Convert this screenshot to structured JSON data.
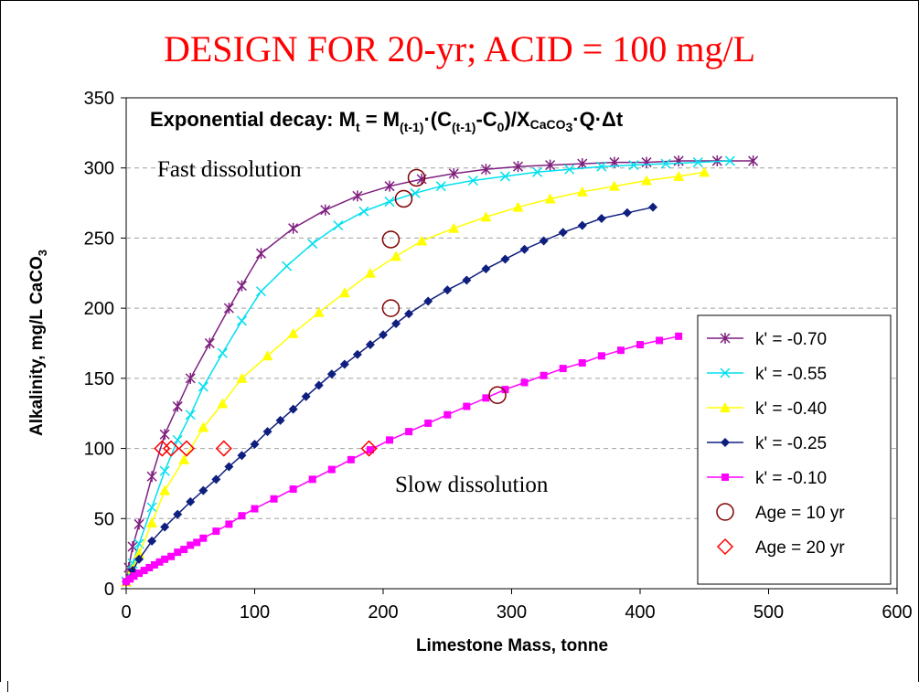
{
  "chart_data": {
    "type": "line",
    "title": "DESIGN FOR 20-yr; ACID = 100 mg/L",
    "xlabel": "Limestone Mass, tonne",
    "ylabel_main": "Alkalinity, mg/L CaCO",
    "ylabel_sub": "3",
    "xlim": [
      0,
      600
    ],
    "ylim": [
      0,
      350
    ],
    "xticks": [
      0,
      100,
      200,
      300,
      400,
      500,
      600
    ],
    "yticks": [
      0,
      50,
      100,
      150,
      200,
      250,
      300,
      350
    ],
    "grid": "horizontal dashed",
    "legend_position": "right",
    "equation": {
      "prefix": "Exponential decay: M",
      "s1": "t",
      "p2": " = M",
      "s2": "(t-1)",
      "p3": "·(C",
      "s3": "(t-1)",
      "p4": "-C",
      "s4": "0",
      "p5": ")/X",
      "s5": "CaCO",
      "s6": "3",
      "p6": "·Q·Δt"
    },
    "annotations": [
      {
        "text": "Fast dissolution",
        "color": "#800080"
      },
      {
        "text": "Slow dissolution",
        "color": "#cc00cc"
      }
    ],
    "series": [
      {
        "name": "k' = -0.70",
        "color": "#7f1f7f",
        "marker": "star",
        "x": [
          0,
          2,
          5,
          10,
          20,
          30,
          40,
          50,
          65,
          80,
          90,
          105,
          130,
          155,
          180,
          205,
          230,
          255,
          280,
          305,
          330,
          355,
          380,
          405,
          430,
          460,
          488
        ],
        "y": [
          5,
          15,
          30,
          46,
          80,
          110,
          130,
          150,
          175,
          200,
          216,
          239,
          257,
          270,
          280,
          287,
          292,
          296,
          299,
          301,
          302,
          303,
          304,
          304,
          305,
          305,
          305
        ]
      },
      {
        "name": "k' = -0.55",
        "color": "#00e0f0",
        "marker": "x",
        "x": [
          0,
          5,
          10,
          20,
          30,
          40,
          50,
          60,
          75,
          90,
          105,
          125,
          145,
          165,
          185,
          205,
          225,
          245,
          270,
          295,
          320,
          345,
          370,
          395,
          420,
          445,
          470
        ],
        "y": [
          5,
          18,
          32,
          58,
          84,
          106,
          124,
          144,
          168,
          191,
          212,
          230,
          246,
          259,
          269,
          276,
          282,
          287,
          291,
          294,
          297,
          299,
          301,
          302,
          303,
          304,
          305
        ]
      },
      {
        "name": "k' = -0.40",
        "color": "#ffff00",
        "marker": "triangle",
        "x": [
          0,
          5,
          10,
          20,
          30,
          45,
          60,
          75,
          90,
          110,
          130,
          150,
          170,
          190,
          210,
          230,
          255,
          280,
          305,
          330,
          355,
          380,
          405,
          430,
          450
        ],
        "y": [
          5,
          14,
          25,
          47,
          70,
          92,
          115,
          132,
          150,
          166,
          182,
          197,
          211,
          225,
          237,
          248,
          257,
          265,
          272,
          278,
          283,
          287,
          291,
          294,
          297
        ]
      },
      {
        "name": "k' = -0.25",
        "color": "#0f1f80",
        "marker": "diamond",
        "x": [
          0,
          5,
          10,
          20,
          30,
          40,
          50,
          60,
          70,
          80,
          90,
          100,
          110,
          120,
          130,
          140,
          150,
          160,
          170,
          180,
          190,
          200,
          210,
          220,
          235,
          250,
          265,
          280,
          295,
          310,
          325,
          340,
          355,
          370,
          390,
          410
        ],
        "y": [
          5,
          13,
          21,
          34,
          44,
          53,
          62,
          70,
          78,
          87,
          95,
          103,
          112,
          120,
          128,
          137,
          145,
          153,
          160,
          167,
          174,
          181,
          189,
          196,
          205,
          213,
          220,
          228,
          235,
          242,
          248,
          254,
          259,
          264,
          268,
          272
        ]
      },
      {
        "name": "k' = -0.10",
        "color": "#ff00ff",
        "marker": "square",
        "x": [
          0,
          3,
          6,
          10,
          14,
          18,
          22,
          26,
          30,
          35,
          40,
          45,
          50,
          55,
          60,
          70,
          80,
          90,
          100,
          115,
          130,
          145,
          160,
          175,
          190,
          205,
          220,
          235,
          250,
          265,
          280,
          295,
          310,
          325,
          340,
          355,
          370,
          385,
          400,
          415,
          430
        ],
        "y": [
          5,
          7,
          9,
          11,
          13,
          15,
          17,
          19,
          21,
          23,
          26,
          28,
          31,
          33,
          36,
          41,
          46,
          52,
          57,
          64,
          71,
          78,
          85,
          92,
          99,
          106,
          112,
          118,
          124,
          130,
          136,
          142,
          147,
          152,
          157,
          161,
          166,
          170,
          174,
          177,
          180
        ]
      },
      {
        "name": "Age = 10 yr",
        "color": "#800000",
        "marker": "circle-open",
        "line": false,
        "x": [
          226,
          216,
          206,
          206,
          289
        ],
        "y": [
          293,
          278,
          249,
          200,
          138
        ]
      },
      {
        "name": "Age = 20 yr",
        "color": "#ff0000",
        "marker": "diamond-open",
        "line": false,
        "x": [
          28,
          35,
          47,
          76,
          189
        ],
        "y": [
          100,
          100,
          100,
          100,
          100
        ]
      }
    ]
  }
}
